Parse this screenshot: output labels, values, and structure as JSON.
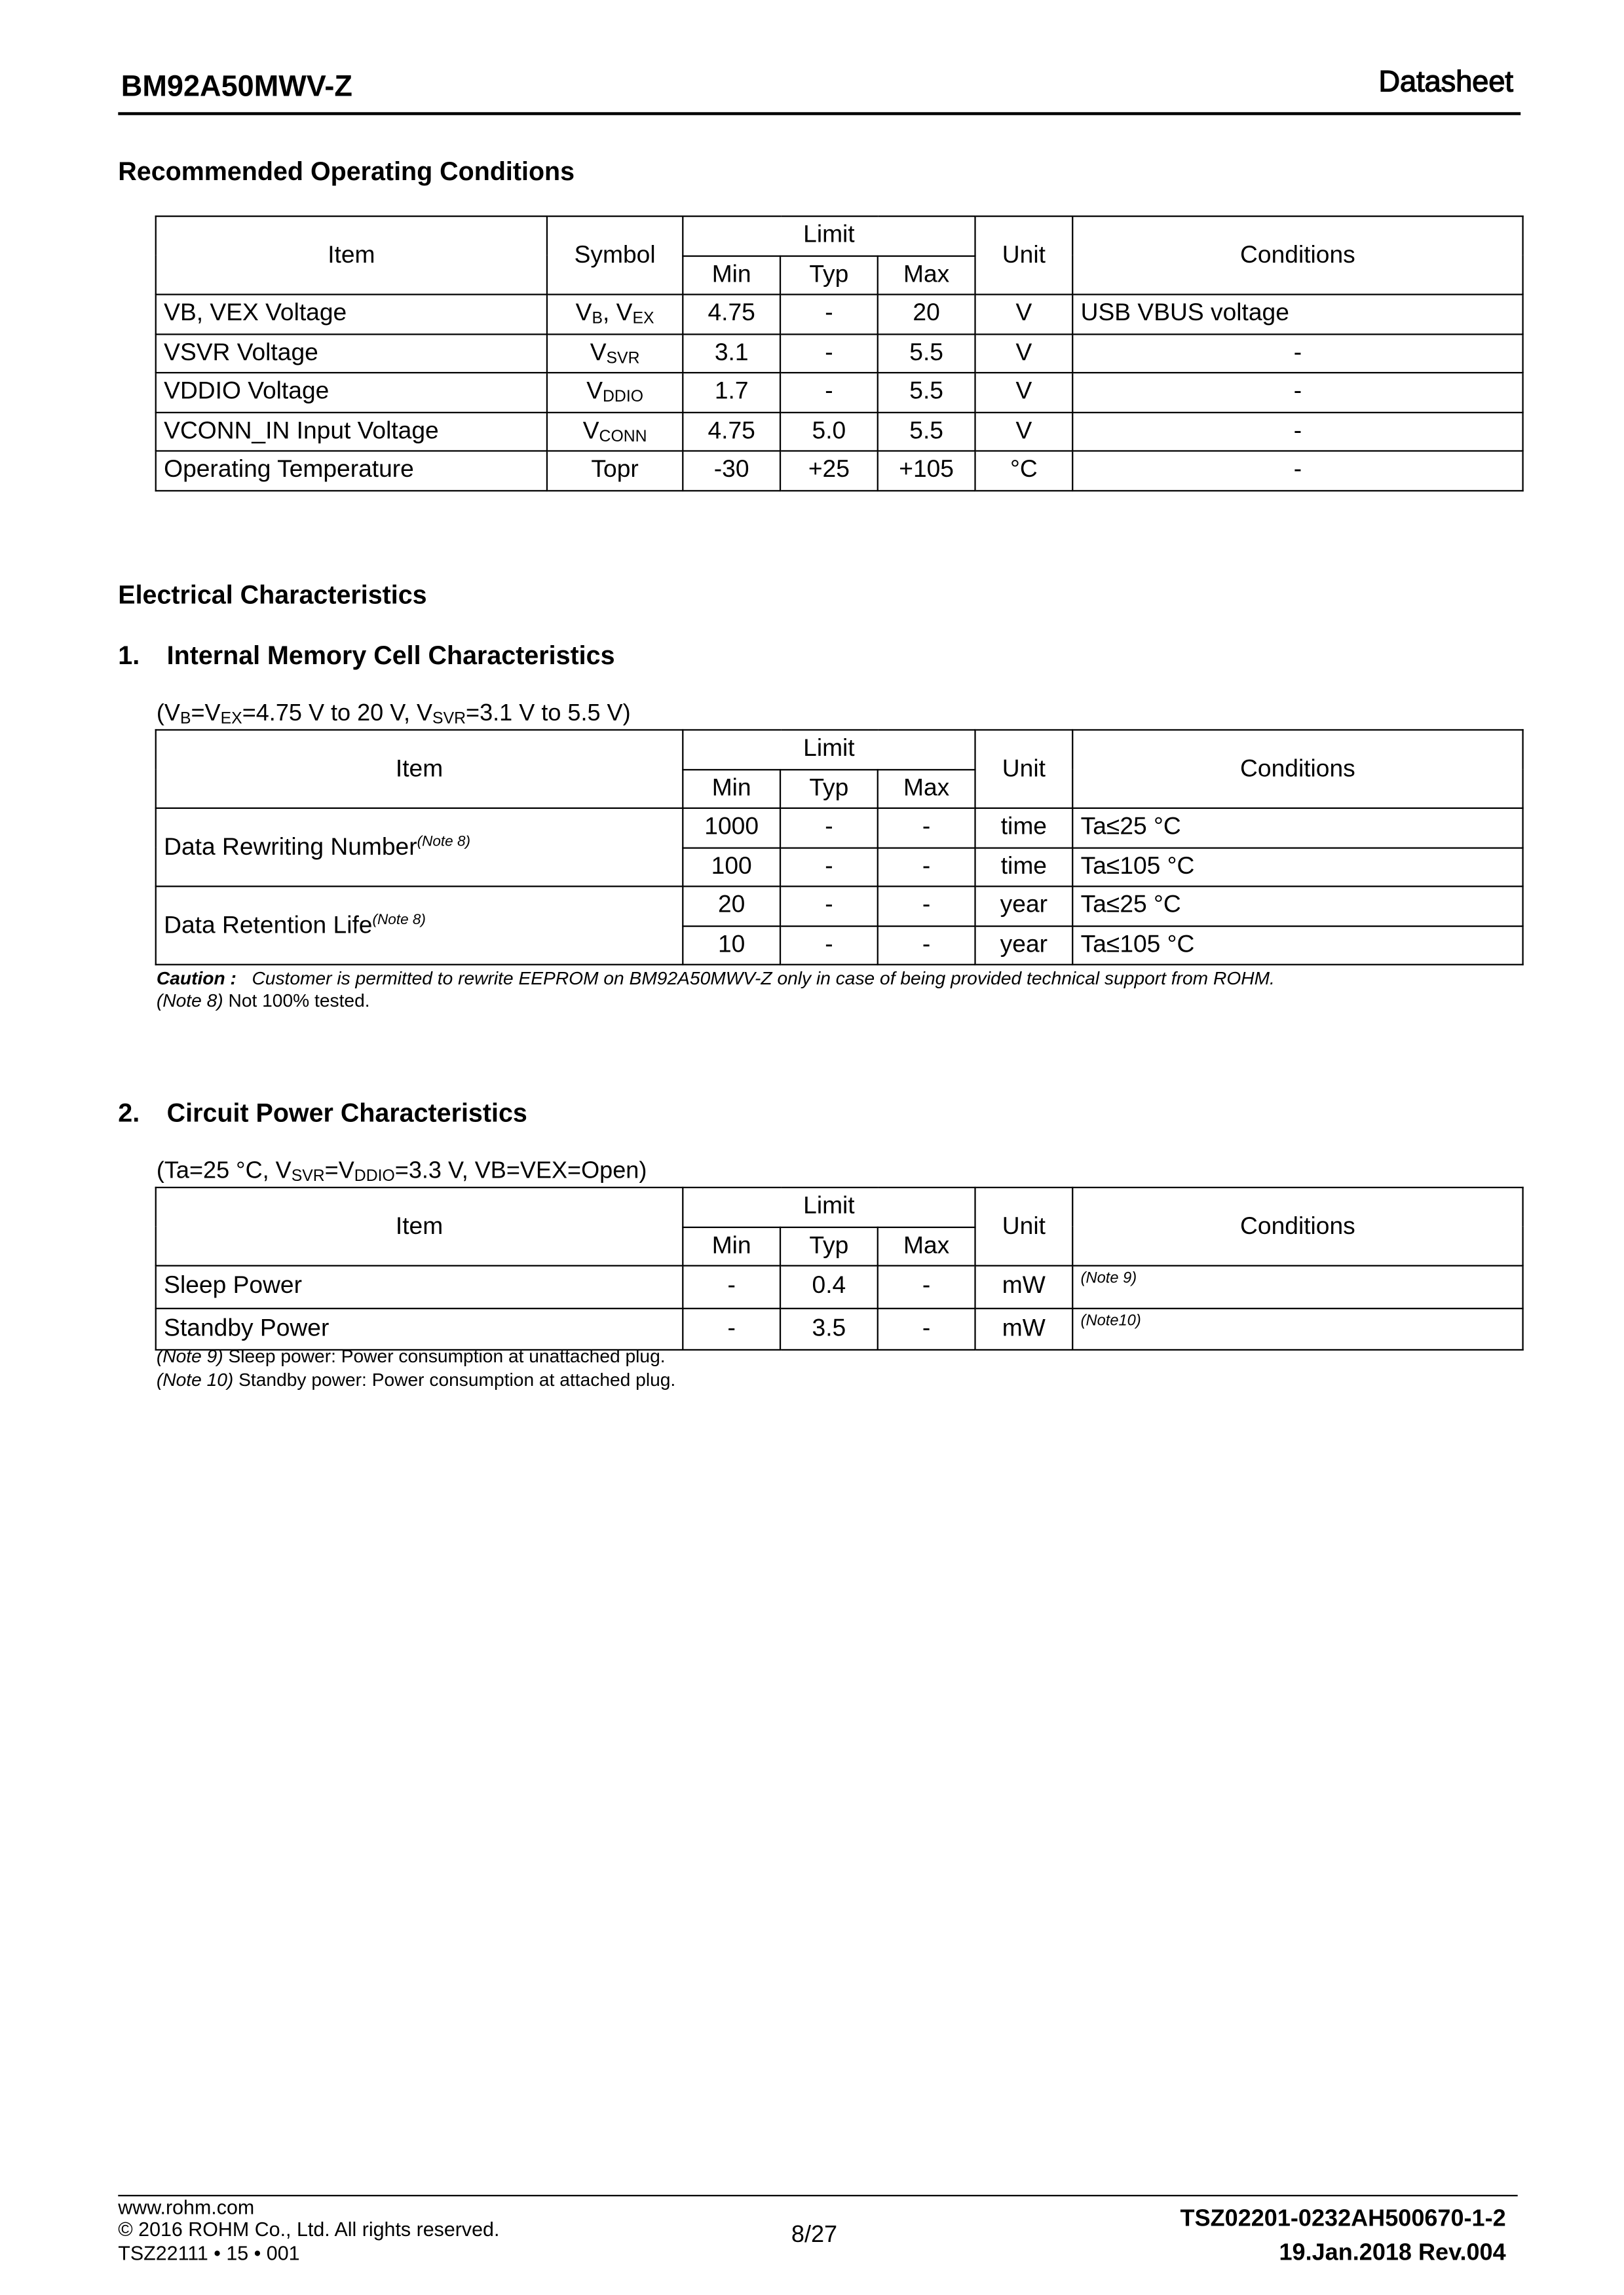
{
  "header": {
    "part": "BM92A50MWV-Z",
    "doc_type": "Datasheet"
  },
  "roc": {
    "title": "Recommended Operating Conditions",
    "headers": {
      "item": "Item",
      "symbol": "Symbol",
      "limit": "Limit",
      "min": "Min",
      "typ": "Typ",
      "max": "Max",
      "unit": "Unit",
      "conditions": "Conditions"
    },
    "rows": [
      {
        "item": "VB, VEX Voltage",
        "sym": "V",
        "sub1": "B",
        "sym2": ", V",
        "sub2": "EX",
        "min": "4.75",
        "typ": "-",
        "max": "20",
        "unit": "V",
        "cond": "USB VBUS voltage"
      },
      {
        "item": "VSVR Voltage",
        "sym": "V",
        "sub1": "SVR",
        "min": "3.1",
        "typ": "-",
        "max": "5.5",
        "unit": "V",
        "cond": "-"
      },
      {
        "item": "VDDIO Voltage",
        "sym": "V",
        "sub1": "DDIO",
        "min": "1.7",
        "typ": "-",
        "max": "5.5",
        "unit": "V",
        "cond": "-"
      },
      {
        "item": "VCONN_IN Input Voltage",
        "sym": "V",
        "sub1": "CONN",
        "min": "4.75",
        "typ": "5.0",
        "max": "5.5",
        "unit": "V",
        "cond": "-"
      },
      {
        "item": "Operating Temperature",
        "sym": "Topr",
        "min": "-30",
        "typ": "+25",
        "max": "+105",
        "unit": "°C",
        "cond": "-"
      }
    ]
  },
  "ec": {
    "title": "Electrical Characteristics"
  },
  "mem": {
    "num": "1.",
    "title": "Internal Memory Cell Characteristics",
    "cond": {
      "a": "(V",
      "b": "B",
      "c": "=V",
      "d": "EX",
      "e": "=4.75 V to 20 V, V",
      "f": "SVR",
      "g": "=3.1 V to 5.5 V)"
    },
    "rows": [
      {
        "item": "Data Rewriting Number",
        "note": "(Note 8)",
        "sub": [
          {
            "min": "1000",
            "typ": "-",
            "max": "-",
            "unit": "time",
            "cond": "Ta≤25 °C"
          },
          {
            "min": "100",
            "typ": "-",
            "max": "-",
            "unit": "time",
            "cond": "Ta≤105 °C"
          }
        ]
      },
      {
        "item": "Data Retention Life",
        "note": "(Note 8)",
        "sub": [
          {
            "min": "20",
            "typ": "-",
            "max": "-",
            "unit": "year",
            "cond": "Ta≤25 °C"
          },
          {
            "min": "10",
            "typ": "-",
            "max": "-",
            "unit": "year",
            "cond": "Ta≤105 °C"
          }
        ]
      }
    ],
    "caution_label": "Caution :",
    "caution": "Customer is permitted to rewrite EEPROM on BM92A50MWV-Z only in case of being provided technical support from ROHM.",
    "note8_label": "(Note 8)",
    "note8": " Not 100% tested."
  },
  "power": {
    "num": "2.",
    "title": "Circuit Power Characteristics",
    "cond": {
      "a": "(Ta=25 °C, V",
      "b": "SVR",
      "c": "=V",
      "d": "DDIO",
      "e": "=3.3 V, VB=VEX=Open)"
    },
    "rows": [
      {
        "item": "Sleep Power",
        "min": "-",
        "typ": "0.4",
        "max": "-",
        "unit": "mW",
        "cond": "(Note 9)"
      },
      {
        "item": "Standby Power",
        "min": "-",
        "typ": "3.5",
        "max": "-",
        "unit": "mW",
        "cond": "(Note10)"
      }
    ],
    "note9_label": "(Note 9)",
    "note9": " Sleep power: Power consumption at unattached plug.",
    "note10_label": "(Note 10)",
    "note10": " Standby power: Power consumption at attached plug."
  },
  "footer": {
    "url": "www.rohm.com",
    "copyright": "© 2016 ROHM Co., Ltd. All rights reserved.",
    "code_left": "TSZ22111 • 15 • 001",
    "page": "8/27",
    "doc_no": "TSZ02201-0232AH500670-1-2",
    "date_rev": "19.Jan.2018 Rev.004"
  }
}
